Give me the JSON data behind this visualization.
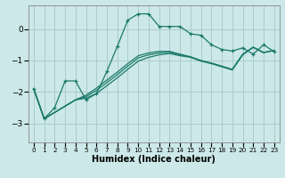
{
  "xlabel": "Humidex (Indice chaleur)",
  "bg_color": "#cce8e8",
  "grid_color": "#aacccc",
  "line_color": "#1a7a6a",
  "xlim": [
    -0.5,
    23.5
  ],
  "ylim": [
    -3.6,
    0.75
  ],
  "yticks": [
    -3,
    -2,
    -1,
    0
  ],
  "xticks": [
    0,
    1,
    2,
    3,
    4,
    5,
    6,
    7,
    8,
    9,
    10,
    11,
    12,
    13,
    14,
    15,
    16,
    17,
    18,
    19,
    20,
    21,
    22,
    23
  ],
  "curve1_x": [
    0,
    1,
    2,
    3,
    4,
    5,
    6,
    7,
    8,
    9,
    10,
    11,
    12,
    13,
    14,
    15,
    16,
    17,
    18,
    19,
    20,
    21,
    22,
    23
  ],
  "curve1_y": [
    -1.9,
    -2.85,
    -2.5,
    -1.65,
    -1.65,
    -2.25,
    -2.05,
    -1.35,
    -0.55,
    0.28,
    0.48,
    0.48,
    0.08,
    0.08,
    0.08,
    -0.15,
    -0.2,
    -0.5,
    -0.65,
    -0.7,
    -0.6,
    -0.8,
    -0.5,
    -0.72
  ],
  "curve2_x": [
    0,
    1,
    4,
    5,
    6,
    7,
    8,
    9,
    10,
    11,
    12,
    13,
    14,
    15,
    16,
    17,
    18,
    19,
    20,
    21,
    22,
    23
  ],
  "curve2_y": [
    -1.9,
    -2.85,
    -2.25,
    -2.2,
    -2.05,
    -1.8,
    -1.55,
    -1.28,
    -1.02,
    -0.9,
    -0.82,
    -0.78,
    -0.85,
    -0.9,
    -1.02,
    -1.1,
    -1.2,
    -1.3,
    -0.82,
    -0.58,
    -0.75,
    -0.68
  ],
  "curve3_x": [
    0,
    1,
    4,
    5,
    6,
    7,
    8,
    9,
    10,
    11,
    12,
    13,
    14,
    15,
    16,
    17,
    18,
    19,
    20,
    21,
    22,
    23
  ],
  "curve3_y": [
    -1.9,
    -2.85,
    -2.25,
    -2.15,
    -1.95,
    -1.7,
    -1.45,
    -1.18,
    -0.92,
    -0.82,
    -0.76,
    -0.74,
    -0.82,
    -0.89,
    -1.01,
    -1.09,
    -1.19,
    -1.29,
    -0.81,
    -0.58,
    -0.75,
    -0.68
  ],
  "curve4_x": [
    0,
    1,
    4,
    5,
    6,
    7,
    8,
    9,
    10,
    11,
    12,
    13,
    14,
    15,
    16,
    17,
    18,
    19,
    20,
    21,
    22,
    23
  ],
  "curve4_y": [
    -1.9,
    -2.85,
    -2.25,
    -2.1,
    -1.88,
    -1.62,
    -1.37,
    -1.1,
    -0.85,
    -0.76,
    -0.71,
    -0.71,
    -0.8,
    -0.88,
    -1.0,
    -1.08,
    -1.18,
    -1.28,
    -0.8,
    -0.58,
    -0.75,
    -0.68
  ]
}
